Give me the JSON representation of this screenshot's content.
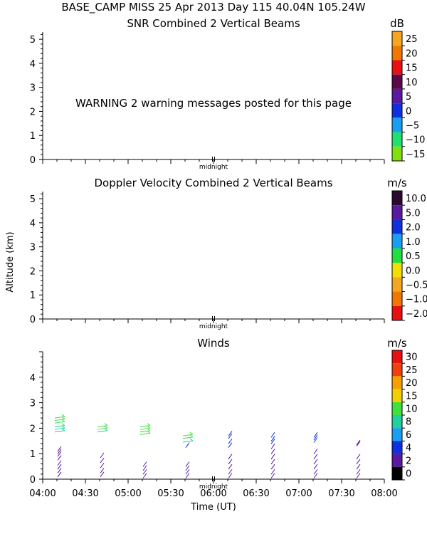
{
  "header": {
    "title": "BASE_CAMP MISS  25 Apr 2013 Day 115 40.04N 105.24W"
  },
  "y_axis_label": "Altitude (km)",
  "x_axis_label": "Time (UT)",
  "midnight_label": "midnight",
  "chart_data": [
    {
      "type": "heatmap",
      "title": "SNR Combined 2 Vertical Beams",
      "ylim": [
        0,
        5.3
      ],
      "yticks": [
        "0",
        "1",
        "2",
        "3",
        "4",
        "5"
      ],
      "warning": "WARNING  2 warning messages posted for this page",
      "colorbar": {
        "unit": "dB",
        "labels": [
          "25",
          "20",
          "15",
          "10",
          "5",
          "0",
          "−5",
          "−10",
          "−15"
        ],
        "colors": [
          "#f5a623",
          "#f07800",
          "#e81010",
          "#5a0a48",
          "#5a1aa0",
          "#1030e0",
          "#1a9ff0",
          "#20e070",
          "#80e010"
        ]
      }
    },
    {
      "type": "heatmap",
      "title": "Doppler Velocity Combined 2 Vertical Beams",
      "ylim": [
        0,
        5.3
      ],
      "yticks": [
        "0",
        "1",
        "2",
        "3",
        "4",
        "5"
      ],
      "colorbar": {
        "unit": "m/s",
        "labels": [
          "10.0",
          "5.0",
          "2.0",
          "1.0",
          "0.5",
          "0.0",
          "−0.5",
          "−1.0",
          "−2.0"
        ],
        "colors": [
          "#2a0a30",
          "#5a1aa0",
          "#1030e0",
          "#1a9ff0",
          "#20e040",
          "#f0e000",
          "#f5a623",
          "#f07800",
          "#e81010"
        ]
      }
    },
    {
      "type": "scatter",
      "title": "Winds",
      "ylim": [
        0,
        5.0
      ],
      "yticks": [
        "0",
        "1",
        "2",
        "3",
        "4"
      ],
      "xticks": [
        "04:00",
        "04:30",
        "05:00",
        "05:30",
        "06:00",
        "06:30",
        "07:00",
        "07:30",
        "08:00"
      ],
      "xlim_minutes": [
        240,
        480
      ],
      "colorbar": {
        "unit": "m/s",
        "labels": [
          "30",
          "25",
          "20",
          "15",
          "10",
          "8",
          "6",
          "4",
          "2",
          "0"
        ],
        "colors": [
          "#e81010",
          "#f04010",
          "#f5a000",
          "#f0d000",
          "#40e040",
          "#20d0a0",
          "#1a9ff0",
          "#1030e0",
          "#5a1aa0",
          "#000000"
        ]
      },
      "series": [
        {
          "time": "04:12",
          "barbs": [
            {
              "alt": 2.4,
              "speed": 14
            },
            {
              "alt": 2.3,
              "speed": 14
            },
            {
              "alt": 2.2,
              "speed": 13
            },
            {
              "alt": 2.05,
              "speed": 9
            },
            {
              "alt": 1.95,
              "speed": 9
            },
            {
              "alt": 1.85,
              "speed": 8
            },
            {
              "alt": 1.2,
              "speed": 3
            },
            {
              "alt": 1.1,
              "speed": 3
            },
            {
              "alt": 1.0,
              "speed": 3
            },
            {
              "alt": 0.85,
              "speed": 3
            },
            {
              "alt": 0.65,
              "speed": 3
            },
            {
              "alt": 0.5,
              "speed": 2
            },
            {
              "alt": 0.35,
              "speed": 2
            },
            {
              "alt": 0.2,
              "speed": 2
            }
          ]
        },
        {
          "time": "04:42",
          "barbs": [
            {
              "alt": 2.05,
              "speed": 11
            },
            {
              "alt": 1.95,
              "speed": 10
            },
            {
              "alt": 1.85,
              "speed": 9
            },
            {
              "alt": 0.95,
              "speed": 3
            },
            {
              "alt": 0.75,
              "speed": 3
            },
            {
              "alt": 0.55,
              "speed": 2
            },
            {
              "alt": 0.35,
              "speed": 2
            },
            {
              "alt": 0.2,
              "speed": 2
            }
          ]
        },
        {
          "time": "05:12",
          "barbs": [
            {
              "alt": 2.05,
              "speed": 12
            },
            {
              "alt": 1.95,
              "speed": 12
            },
            {
              "alt": 1.85,
              "speed": 11
            },
            {
              "alt": 1.75,
              "speed": 11
            },
            {
              "alt": 0.6,
              "speed": 3
            },
            {
              "alt": 0.45,
              "speed": 2
            },
            {
              "alt": 0.3,
              "speed": 2
            },
            {
              "alt": 0.15,
              "speed": 2
            }
          ]
        },
        {
          "time": "05:42",
          "barbs": [
            {
              "alt": 1.7,
              "speed": 12
            },
            {
              "alt": 1.6,
              "speed": 10
            },
            {
              "alt": 1.45,
              "speed": 9
            },
            {
              "alt": 1.35,
              "speed": 5
            },
            {
              "alt": 0.6,
              "speed": 3
            },
            {
              "alt": 0.45,
              "speed": 2
            },
            {
              "alt": 0.3,
              "speed": 2
            },
            {
              "alt": 0.15,
              "speed": 2
            }
          ]
        },
        {
          "time": "06:12",
          "barbs": [
            {
              "alt": 1.8,
              "speed": 4
            },
            {
              "alt": 1.7,
              "speed": 4
            },
            {
              "alt": 1.5,
              "speed": 4
            },
            {
              "alt": 1.35,
              "speed": 4
            },
            {
              "alt": 0.9,
              "speed": 3
            },
            {
              "alt": 0.7,
              "speed": 3
            },
            {
              "alt": 0.5,
              "speed": 2
            },
            {
              "alt": 0.3,
              "speed": 2
            },
            {
              "alt": 0.15,
              "speed": 2
            }
          ]
        },
        {
          "time": "06:42",
          "barbs": [
            {
              "alt": 1.75,
              "speed": 4
            },
            {
              "alt": 1.6,
              "speed": 4
            },
            {
              "alt": 1.5,
              "speed": 4
            },
            {
              "alt": 1.3,
              "speed": 3
            },
            {
              "alt": 1.1,
              "speed": 3
            },
            {
              "alt": 0.9,
              "speed": 3
            },
            {
              "alt": 0.7,
              "speed": 3
            },
            {
              "alt": 0.5,
              "speed": 2
            },
            {
              "alt": 0.3,
              "speed": 2
            },
            {
              "alt": 0.15,
              "speed": 2
            }
          ]
        },
        {
          "time": "07:12",
          "barbs": [
            {
              "alt": 1.75,
              "speed": 4
            },
            {
              "alt": 1.65,
              "speed": 4
            },
            {
              "alt": 1.55,
              "speed": 4
            },
            {
              "alt": 1.1,
              "speed": 3
            },
            {
              "alt": 0.9,
              "speed": 3
            },
            {
              "alt": 0.7,
              "speed": 3
            },
            {
              "alt": 0.5,
              "speed": 2
            },
            {
              "alt": 0.3,
              "speed": 2
            },
            {
              "alt": 0.15,
              "speed": 2
            }
          ]
        },
        {
          "time": "07:42",
          "barbs": [
            {
              "alt": 1.45,
              "speed": 3
            },
            {
              "alt": 1.4,
              "speed": 3
            },
            {
              "alt": 0.9,
              "speed": 3
            },
            {
              "alt": 0.7,
              "speed": 3
            },
            {
              "alt": 0.5,
              "speed": 2
            },
            {
              "alt": 0.3,
              "speed": 2
            },
            {
              "alt": 0.15,
              "speed": 2
            }
          ]
        }
      ]
    }
  ]
}
